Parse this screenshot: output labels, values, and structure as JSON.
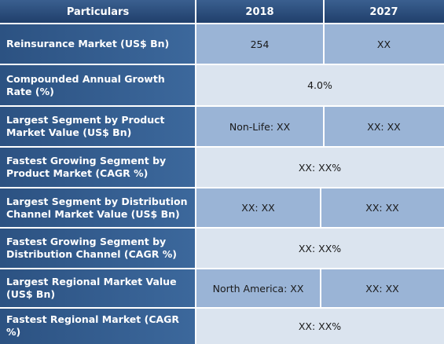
{
  "header": {
    "col_particulars": "Particulars",
    "col_2018": "2018",
    "col_2027": "2027"
  },
  "rows": [
    {
      "label": "Reinsurance Market (US$ Bn)",
      "v2018": "254",
      "v2027": "XX"
    },
    {
      "label": "Compounded Annual Growth Rate (%)",
      "merged": "4.0%"
    },
    {
      "label": "Largest Segment by Product Market Value (US$ Bn)",
      "v2018": "Non-Life: XX",
      "v2027": "XX: XX"
    },
    {
      "label": "Fastest Growing Segment by Product Market (CAGR %)",
      "merged": "XX: XX%"
    },
    {
      "label": "Largest Segment by Distribution Channel Market Value (US$ Bn)",
      "v2018": "XX: XX",
      "v2027": "XX: XX"
    },
    {
      "label": "Fastest Growing Segment by Distribution Channel (CAGR %)",
      "merged": "XX: XX%"
    },
    {
      "label": "Largest Regional Market Value (US$ Bn)",
      "v2018": "North America: XX",
      "v2027": "XX: XX"
    },
    {
      "label": "Fastest Regional Market (CAGR %)",
      "merged": "XX: XX%"
    }
  ],
  "colors": {
    "header_bg": "#2a4a78",
    "label_bg": "#325c8e",
    "value_dark": "#9ab4d6",
    "value_light": "#dbe4ef"
  }
}
